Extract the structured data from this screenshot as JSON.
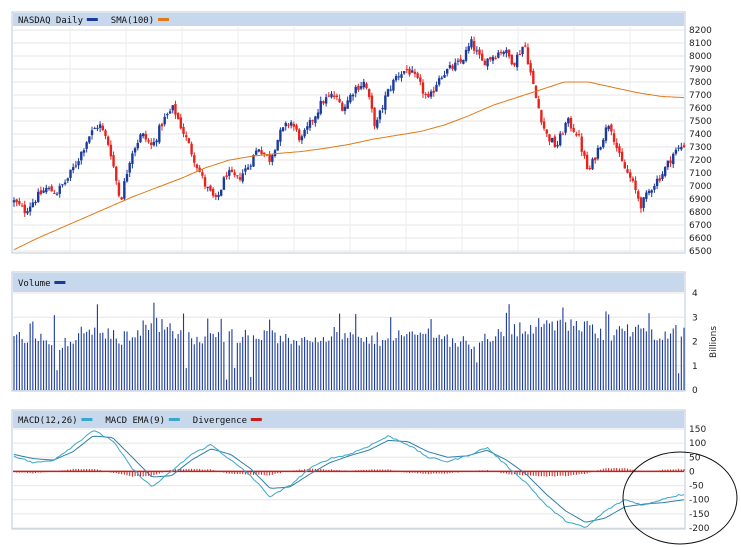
{
  "chart_data": [
    {
      "type": "candlestick",
      "panel": "price",
      "legend": [
        {
          "label": "NASDAQ Daily",
          "color": "#1a3a9c"
        },
        {
          "label": "SMA(100)",
          "color": "#e07b1a"
        }
      ],
      "y_ticks": [
        8200,
        8100,
        8000,
        7900,
        7800,
        7700,
        7600,
        7500,
        7400,
        7300,
        7200,
        7100,
        7000,
        6900,
        6800,
        6700,
        6600,
        6500
      ],
      "ylim": [
        6500,
        8200
      ],
      "up_color": "#1a3a9c",
      "down_color": "#e8231e",
      "close_anchors": [
        6880,
        6810,
        6900,
        6980,
        6950,
        7050,
        7200,
        7380,
        7480,
        7300,
        6880,
        7250,
        7400,
        7300,
        7500,
        7600,
        7400,
        7200,
        7000,
        6880,
        7100,
        7050,
        7150,
        7300,
        7200,
        7400,
        7500,
        7350,
        7500,
        7650,
        7700,
        7600,
        7750,
        7800,
        7450,
        7700,
        7850,
        7900,
        7800,
        7650,
        7850,
        7900,
        7950,
        8100,
        7950,
        8000,
        8050,
        7950,
        8100,
        7700,
        7400,
        7300,
        7500,
        7400,
        7100,
        7300,
        7500,
        7200,
        7050,
        6850,
        7000,
        7100,
        7250,
        7320
      ],
      "sma_anchors": [
        6510,
        6600,
        6680,
        6760,
        6840,
        6920,
        6990,
        7060,
        7140,
        7200,
        7230,
        7250,
        7265,
        7290,
        7320,
        7360,
        7390,
        7420,
        7470,
        7540,
        7620,
        7680,
        7740,
        7800,
        7800,
        7760,
        7720,
        7690,
        7680
      ]
    },
    {
      "type": "bar",
      "panel": "volume",
      "legend": [
        {
          "label": "Volume",
          "color": "#1a3a9c"
        }
      ],
      "y_ticks": [
        0,
        1,
        2,
        3,
        4
      ],
      "ylim": [
        0,
        4
      ],
      "ylabel": "Billions",
      "bar_color": "#1a3a9c",
      "volume_anchors": [
        2.3,
        2.0,
        2.1,
        1.9,
        2.2,
        2.5,
        2.3,
        2.1,
        2.4,
        2.8,
        2.6,
        2.2,
        2.0,
        2.1,
        2.3,
        2.2,
        2.3,
        2.2,
        2.0,
        2.1,
        2.2,
        2.3,
        2.2,
        2.0,
        2.1,
        2.3,
        2.2,
        2.4,
        2.2,
        2.0,
        1.9,
        2.2,
        2.3,
        2.5,
        2.6,
        2.8,
        2.6,
        2.7,
        2.5,
        2.3,
        2.4,
        2.5,
        2.3,
        2.4,
        2.5
      ]
    },
    {
      "type": "line",
      "panel": "macd",
      "legend": [
        {
          "label": "MACD(12,26)",
          "color": "#3aa7c8"
        },
        {
          "label": "MACD EMA(9)",
          "color": "#3aa7c8"
        },
        {
          "label": "Divergence",
          "color": "#c81e1e"
        }
      ],
      "y_ticks": [
        150,
        100,
        50,
        0,
        -50,
        -100,
        -150,
        -200
      ],
      "ylim": [
        -200,
        150
      ],
      "macd_anchors": [
        55,
        30,
        40,
        90,
        145,
        110,
        10,
        -55,
        0,
        60,
        95,
        40,
        -15,
        -90,
        -50,
        10,
        45,
        60,
        90,
        125,
        95,
        50,
        35,
        55,
        85,
        20,
        -40,
        -120,
        -175,
        -200,
        -140,
        -100,
        -120,
        -95,
        -80
      ],
      "signal_anchors": [
        60,
        45,
        40,
        70,
        125,
        120,
        50,
        -20,
        -15,
        40,
        80,
        60,
        10,
        -60,
        -55,
        -10,
        30,
        55,
        75,
        110,
        105,
        70,
        50,
        55,
        75,
        40,
        -10,
        -80,
        -140,
        -180,
        -165,
        -125,
        -115,
        -110,
        -100
      ],
      "circle_annotation": true
    }
  ]
}
